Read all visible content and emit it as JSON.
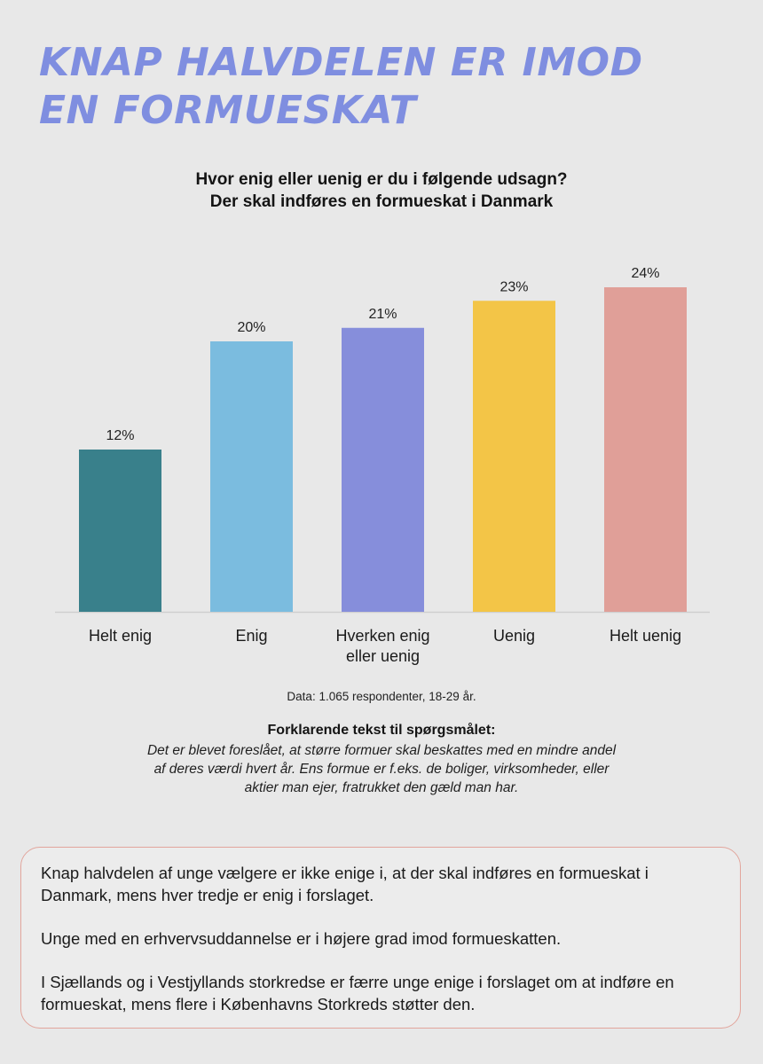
{
  "headline": {
    "line1": "KNAP HALVDELEN ER IMOD",
    "line2": "EN FORMUESKAT"
  },
  "question": {
    "line1": "Hvor enig eller uenig er du i følgende udsagn?",
    "line2": "Der skal indføres en formueskat i Danmark"
  },
  "chart_data": {
    "type": "bar",
    "title": "Hvor enig eller uenig er du i følgende udsagn? Der skal indføres en formueskat i Danmark",
    "categories": [
      [
        "Helt enig"
      ],
      [
        "Enig"
      ],
      [
        "Hverken enig",
        "eller uenig"
      ],
      [
        "Uenig"
      ],
      [
        "Helt uenig"
      ]
    ],
    "values": [
      12,
      20,
      21,
      23,
      24
    ],
    "value_labels": [
      "12%",
      "20%",
      "21%",
      "23%",
      "24%"
    ],
    "colors": [
      "#39808b",
      "#7bbcdf",
      "#868edb",
      "#f3c547",
      "#e09f98"
    ],
    "unit": "%",
    "ylim": [
      0,
      24
    ],
    "grid": false,
    "xlabel": "",
    "ylabel": ""
  },
  "data_note": "Data: 1.065 respondenter, 18-29 år.",
  "explanation": {
    "title": "Forklarende tekst til spørgsmålet:",
    "lines": [
      "Det er blevet foreslået, at større formuer skal beskattes med en mindre andel",
      "af deres værdi hvert år. Ens formue er f.eks. de boliger, virksomheder, eller",
      "aktier man ejer, fratrukket den gæld man har."
    ]
  },
  "summary": {
    "paragraphs": [
      "Knap halvdelen af unge vælgere er ikke enige i, at der skal indføres en formueskat i Danmark, mens hver tredje er enig i forslaget.",
      "Unge med en erhvervsuddannelse er i højere grad imod formueskatten.",
      "I Sjællands og i Vestjyllands storkredse er færre unge enige i forslaget om at indføre en formueskat, mens flere i Københavns Storkreds støtter den."
    ]
  }
}
